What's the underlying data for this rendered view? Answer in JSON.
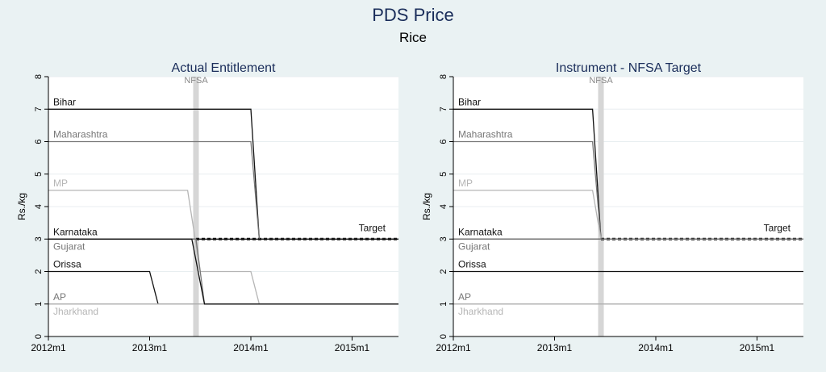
{
  "title": "PDS Price",
  "subtitle": "Rice",
  "chart_data": [
    {
      "type": "line",
      "title": "Actual Entitlement",
      "xlabel": "",
      "ylabel": "Rs./kg",
      "x_ticks": [
        "2012m1",
        "2013m1",
        "2014m1",
        "2015m1"
      ],
      "xlim": [
        0,
        41.5
      ],
      "ylim": [
        0,
        8
      ],
      "y_ticks": [
        0,
        1,
        2,
        3,
        4,
        5,
        6,
        7,
        8
      ],
      "grid": true,
      "vline": {
        "label": "NFSA",
        "x": 17.5
      },
      "target": {
        "label": "Target",
        "value": 3,
        "x_start": 17.5
      },
      "series": [
        {
          "name": "Bihar",
          "color": "#111111",
          "points": [
            [
              0,
              7
            ],
            [
              24,
              7
            ],
            [
              25,
              3
            ],
            [
              41.5,
              3
            ]
          ]
        },
        {
          "name": "Maharashtra",
          "color": "#777777",
          "points": [
            [
              0,
              6
            ],
            [
              24,
              6
            ],
            [
              25,
              3
            ],
            [
              41.5,
              3
            ]
          ]
        },
        {
          "name": "MP",
          "color": "#b5b5b5",
          "points": [
            [
              0,
              4.5
            ],
            [
              16.5,
              4.5
            ],
            [
              18,
              2
            ],
            [
              24,
              2
            ],
            [
              25,
              1
            ],
            [
              41.5,
              1
            ]
          ]
        },
        {
          "name": "Karnataka",
          "color": "#111111",
          "points": [
            [
              0,
              3
            ],
            [
              41.5,
              3
            ]
          ]
        },
        {
          "name": "Gujarat",
          "color": "#777777",
          "points": [
            [
              0,
              3
            ],
            [
              17.5,
              3
            ],
            [
              18.5,
              1
            ],
            [
              41.5,
              1
            ]
          ]
        },
        {
          "name": "Orissa",
          "color": "#111111",
          "points": [
            [
              0,
              2
            ],
            [
              12,
              2
            ],
            [
              13,
              1
            ],
            [
              41.5,
              1
            ]
          ]
        },
        {
          "name": "AP",
          "color": "#777777",
          "points": [
            [
              0,
              1
            ],
            [
              41.5,
              1
            ]
          ]
        },
        {
          "name": "Jharkhand",
          "color": "#b5b5b5",
          "points": [
            [
              0,
              1
            ],
            [
              41.5,
              1
            ]
          ]
        },
        {
          "name": "",
          "color": "#111111",
          "points": [
            [
              0,
              3
            ],
            [
              17,
              3
            ],
            [
              18.5,
              1
            ],
            [
              41.5,
              1
            ]
          ]
        }
      ]
    },
    {
      "type": "line",
      "title": "Instrument - NFSA Target",
      "xlabel": "",
      "ylabel": "Rs./kg",
      "x_ticks": [
        "2012m1",
        "2013m1",
        "2014m1",
        "2015m1"
      ],
      "xlim": [
        0,
        41.5
      ],
      "ylim": [
        0,
        8
      ],
      "y_ticks": [
        0,
        1,
        2,
        3,
        4,
        5,
        6,
        7,
        8
      ],
      "grid": true,
      "vline": {
        "label": "NFSA",
        "x": 17.5
      },
      "target": {
        "label": "Target",
        "value": 3,
        "x_start": 17.5
      },
      "series": [
        {
          "name": "Bihar",
          "color": "#111111",
          "points": [
            [
              0,
              7
            ],
            [
              16.5,
              7
            ],
            [
              17.5,
              3
            ],
            [
              41.5,
              3
            ]
          ]
        },
        {
          "name": "Maharashtra",
          "color": "#777777",
          "points": [
            [
              0,
              6
            ],
            [
              16.5,
              6
            ],
            [
              17.5,
              3
            ],
            [
              41.5,
              3
            ]
          ]
        },
        {
          "name": "MP",
          "color": "#b5b5b5",
          "points": [
            [
              0,
              4.5
            ],
            [
              16.5,
              4.5
            ],
            [
              17.5,
              3
            ],
            [
              41.5,
              3
            ]
          ]
        },
        {
          "name": "Karnataka",
          "color": "#111111",
          "points": [
            [
              0,
              3
            ],
            [
              41.5,
              3
            ]
          ]
        },
        {
          "name": "Gujarat",
          "color": "#777777",
          "points": [
            [
              0,
              3
            ],
            [
              41.5,
              3
            ]
          ]
        },
        {
          "name": "Orissa",
          "color": "#111111",
          "points": [
            [
              0,
              2
            ],
            [
              41.5,
              2
            ]
          ]
        },
        {
          "name": "AP",
          "color": "#777777",
          "points": [
            [
              0,
              1
            ],
            [
              41.5,
              1
            ]
          ]
        },
        {
          "name": "Jharkhand",
          "color": "#b5b5b5",
          "points": [
            [
              0,
              1
            ],
            [
              41.5,
              1
            ]
          ]
        }
      ]
    }
  ],
  "colors": {
    "background": "#eaf2f3",
    "plot_background": "#ffffff",
    "title": "#1a2d5a",
    "nfsa_band": "#d6d6d6",
    "grid": "#e8eef0"
  }
}
